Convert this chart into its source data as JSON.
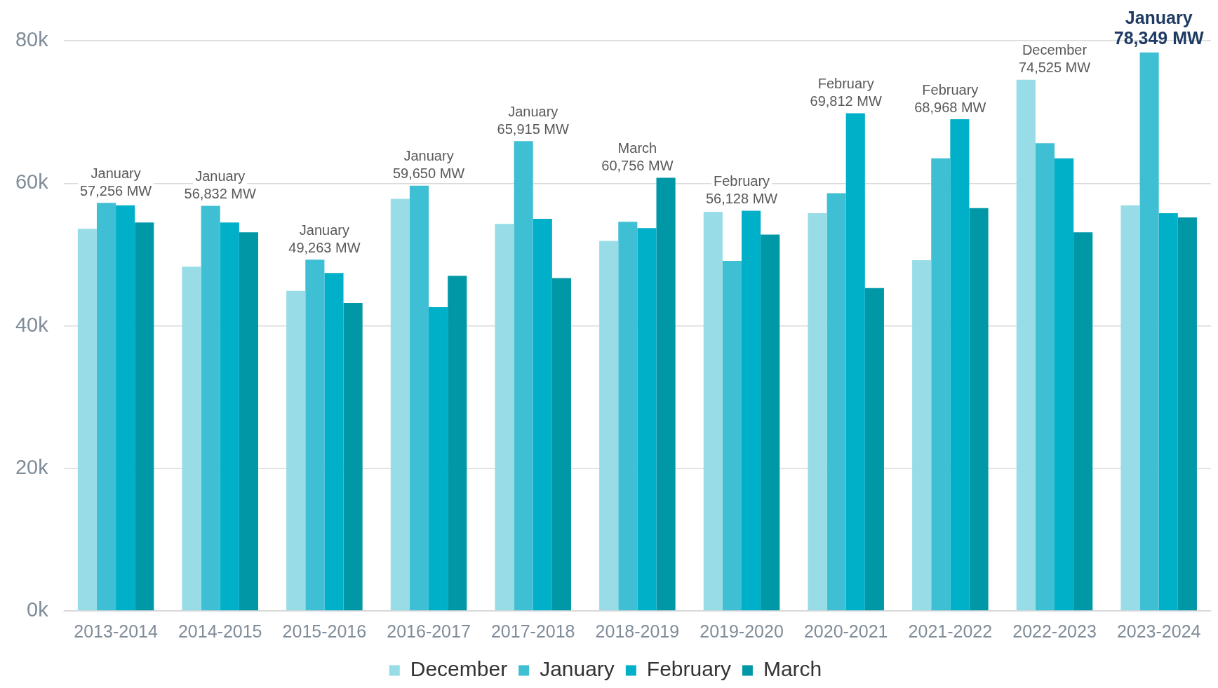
{
  "chart_data": {
    "type": "bar",
    "categories": [
      "2013-2014",
      "2014-2015",
      "2015-2016",
      "2016-2017",
      "2017-2018",
      "2018-2019",
      "2019-2020",
      "2020-2021",
      "2021-2022",
      "2022-2023",
      "2023-2024"
    ],
    "series": [
      {
        "name": "December",
        "color": "#97dce6",
        "values": [
          53600,
          48300,
          44900,
          57800,
          54300,
          51900,
          56000,
          55800,
          49200,
          74525,
          56900
        ]
      },
      {
        "name": "January",
        "color": "#3fbfd3",
        "values": [
          57256,
          56832,
          49263,
          59650,
          65915,
          54600,
          49100,
          58600,
          63500,
          65600,
          78349
        ]
      },
      {
        "name": "February",
        "color": "#00afc8",
        "values": [
          56900,
          54500,
          47400,
          42600,
          55000,
          53700,
          56128,
          69812,
          68968,
          63500,
          55800
        ]
      },
      {
        "name": "March",
        "color": "#0097a7",
        "values": [
          54500,
          53100,
          43200,
          47000,
          46700,
          60756,
          52800,
          45300,
          56500,
          53100,
          55200
        ]
      }
    ],
    "ylim": [
      0,
      80000
    ],
    "yticks": [
      {
        "value": 0,
        "label": "0k"
      },
      {
        "value": 20000,
        "label": "20k"
      },
      {
        "value": 40000,
        "label": "40k"
      },
      {
        "value": 60000,
        "label": "60k"
      },
      {
        "value": 80000,
        "label": "80k"
      }
    ],
    "grid": "y",
    "legend": "bottom",
    "annotations": [
      {
        "text": "January\n57,256 MW",
        "x": "2013-2014",
        "y": 57256
      },
      {
        "text": "January\n56,832 MW",
        "x": "2014-2015",
        "y": 56832
      },
      {
        "text": "January\n49,263 MW",
        "x": "2015-2016",
        "y": 49263
      },
      {
        "text": "January\n59,650 MW",
        "x": "2016-2017",
        "y": 59650
      },
      {
        "text": "January\n65,915 MW",
        "x": "2017-2018",
        "y": 65915
      },
      "March\n60,756 MW",
      {
        "text": "February\n56,128 MW",
        "x": "2019-2020",
        "y": 56128
      },
      {
        "text": "February\n69,812 MW",
        "x": "2020-2021",
        "y": 69812
      },
      {
        "text": "February\n68,968 MW",
        "x": "2021-2022",
        "y": 68968
      },
      "December\n74,525 MW",
      {
        "text": "January\n78,349 MW",
        "x": "2023-2024",
        "y": 78349
      }
    ]
  }
}
